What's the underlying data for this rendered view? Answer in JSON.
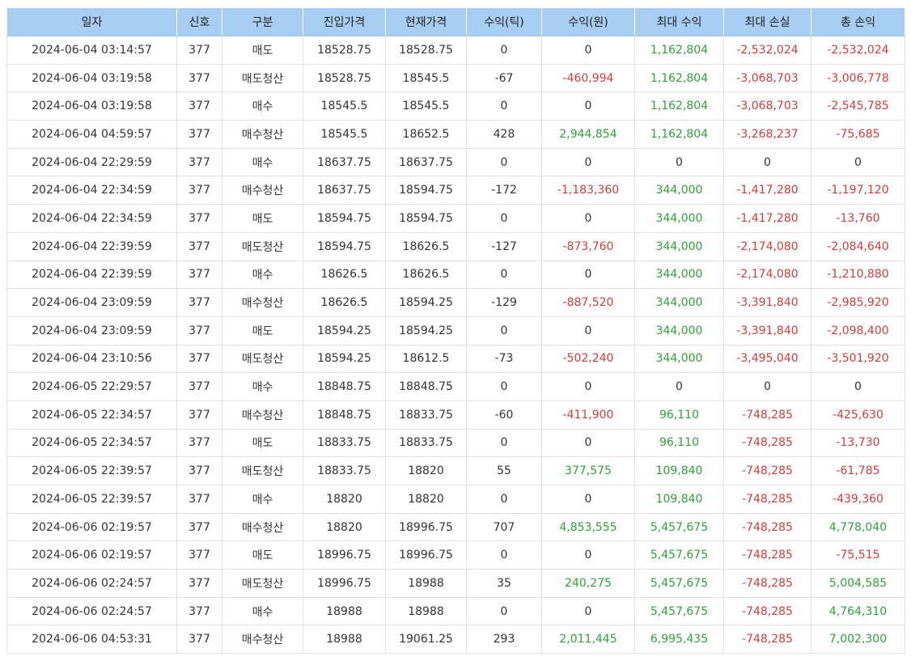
{
  "colors": {
    "header_bg": "#a7cdf3",
    "positive": "#2ea23a",
    "negative": "#d23c3c",
    "border": "#e1e1e1"
  },
  "table": {
    "columns": [
      "일자",
      "신호",
      "구분",
      "진입가격",
      "현재가격",
      "수익(틱)",
      "수익(원)",
      "최대 수익",
      "최대 손실",
      "총 손익"
    ],
    "rows": [
      [
        "2024-06-04 03:14:57",
        "377",
        "매도",
        "18528.75",
        "18528.75",
        "0",
        "0",
        "1,162,804",
        "-2,532,024",
        "-2,532,024"
      ],
      [
        "2024-06-04 03:19:58",
        "377",
        "매도청산",
        "18528.75",
        "18545.5",
        "-67",
        "-460,994",
        "1,162,804",
        "-3,068,703",
        "-3,006,778"
      ],
      [
        "2024-06-04 03:19:58",
        "377",
        "매수",
        "18545.5",
        "18545.5",
        "0",
        "0",
        "1,162,804",
        "-3,068,703",
        "-2,545,785"
      ],
      [
        "2024-06-04 04:59:57",
        "377",
        "매수청산",
        "18545.5",
        "18652.5",
        "428",
        "2,944,854",
        "1,162,804",
        "-3,268,237",
        "-75,685"
      ],
      [
        "2024-06-04 22:29:59",
        "377",
        "매수",
        "18637.75",
        "18637.75",
        "0",
        "0",
        "0",
        "0",
        "0"
      ],
      [
        "2024-06-04 22:34:59",
        "377",
        "매수청산",
        "18637.75",
        "18594.75",
        "-172",
        "-1,183,360",
        "344,000",
        "-1,417,280",
        "-1,197,120"
      ],
      [
        "2024-06-04 22:34:59",
        "377",
        "매도",
        "18594.75",
        "18594.75",
        "0",
        "0",
        "344,000",
        "-1,417,280",
        "-13,760"
      ],
      [
        "2024-06-04 22:39:59",
        "377",
        "매도청산",
        "18594.75",
        "18626.5",
        "-127",
        "-873,760",
        "344,000",
        "-2,174,080",
        "-2,084,640"
      ],
      [
        "2024-06-04 22:39:59",
        "377",
        "매수",
        "18626.5",
        "18626.5",
        "0",
        "0",
        "344,000",
        "-2,174,080",
        "-1,210,880"
      ],
      [
        "2024-06-04 23:09:59",
        "377",
        "매수청산",
        "18626.5",
        "18594.25",
        "-129",
        "-887,520",
        "344,000",
        "-3,391,840",
        "-2,985,920"
      ],
      [
        "2024-06-04 23:09:59",
        "377",
        "매도",
        "18594.25",
        "18594.25",
        "0",
        "0",
        "344,000",
        "-3,391,840",
        "-2,098,400"
      ],
      [
        "2024-06-04 23:10:56",
        "377",
        "매도청산",
        "18594.25",
        "18612.5",
        "-73",
        "-502,240",
        "344,000",
        "-3,495,040",
        "-3,501,920"
      ],
      [
        "2024-06-05 22:29:57",
        "377",
        "매수",
        "18848.75",
        "18848.75",
        "0",
        "0",
        "0",
        "0",
        "0"
      ],
      [
        "2024-06-05 22:34:57",
        "377",
        "매수청산",
        "18848.75",
        "18833.75",
        "-60",
        "-411,900",
        "96,110",
        "-748,285",
        "-425,630"
      ],
      [
        "2024-06-05 22:34:57",
        "377",
        "매도",
        "18833.75",
        "18833.75",
        "0",
        "0",
        "96,110",
        "-748,285",
        "-13,730"
      ],
      [
        "2024-06-05 22:39:57",
        "377",
        "매도청산",
        "18833.75",
        "18820",
        "55",
        "377,575",
        "109,840",
        "-748,285",
        "-61,785"
      ],
      [
        "2024-06-05 22:39:57",
        "377",
        "매수",
        "18820",
        "18820",
        "0",
        "0",
        "109,840",
        "-748,285",
        "-439,360"
      ],
      [
        "2024-06-06 02:19:57",
        "377",
        "매수청산",
        "18820",
        "18996.75",
        "707",
        "4,853,555",
        "5,457,675",
        "-748,285",
        "4,778,040"
      ],
      [
        "2024-06-06 02:19:57",
        "377",
        "매도",
        "18996.75",
        "18996.75",
        "0",
        "0",
        "5,457,675",
        "-748,285",
        "-75,515"
      ],
      [
        "2024-06-06 02:24:57",
        "377",
        "매도청산",
        "18996.75",
        "18988",
        "35",
        "240,275",
        "5,457,675",
        "-748,285",
        "5,004,585"
      ],
      [
        "2024-06-06 02:24:57",
        "377",
        "매수",
        "18988",
        "18988",
        "0",
        "0",
        "5,457,675",
        "-748,285",
        "4,764,310"
      ],
      [
        "2024-06-06 04:53:31",
        "377",
        "매수청산",
        "18988",
        "19061.25",
        "293",
        "2,011,445",
        "6,995,435",
        "-748,285",
        "7,002,300"
      ]
    ]
  }
}
